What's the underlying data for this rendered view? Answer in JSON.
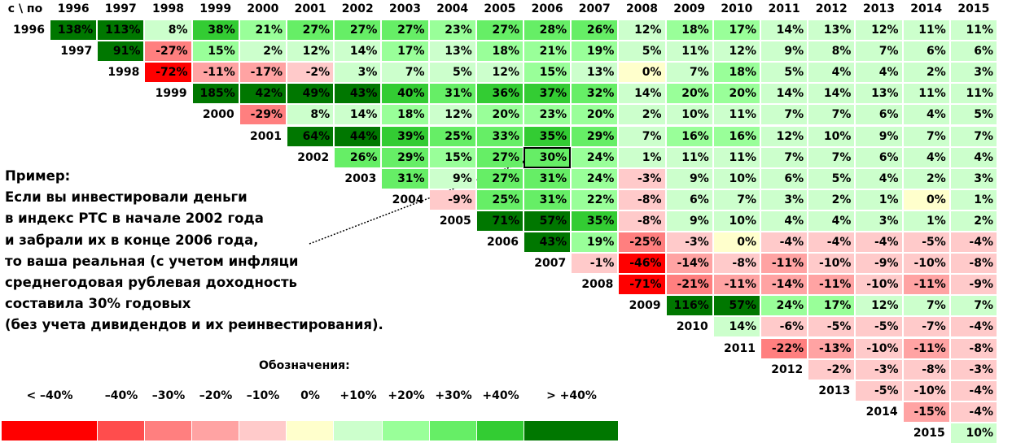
{
  "chart_data": {
    "type": "heatmap",
    "corner_label": "с \\ по",
    "columns": [
      "1996",
      "1997",
      "1998",
      "1999",
      "2000",
      "2001",
      "2002",
      "2003",
      "2004",
      "2005",
      "2006",
      "2007",
      "2008",
      "2009",
      "2010",
      "2011",
      "2012",
      "2013",
      "2014",
      "2015"
    ],
    "rows": [
      {
        "start": "1996",
        "values": [
          "138%",
          "113%",
          "8%",
          "38%",
          "21%",
          "27%",
          "27%",
          "27%",
          "23%",
          "27%",
          "28%",
          "26%",
          "12%",
          "18%",
          "17%",
          "14%",
          "13%",
          "12%",
          "11%",
          "11%"
        ]
      },
      {
        "start": "1997",
        "values": [
          "91%",
          "-27%",
          "15%",
          "2%",
          "12%",
          "14%",
          "17%",
          "13%",
          "18%",
          "21%",
          "19%",
          "5%",
          "11%",
          "12%",
          "9%",
          "8%",
          "7%",
          "6%",
          "6%"
        ]
      },
      {
        "start": "1998",
        "values": [
          "-72%",
          "-11%",
          "-17%",
          "-2%",
          "3%",
          "7%",
          "5%",
          "12%",
          "15%",
          "13%",
          "0%",
          "7%",
          "18%",
          "5%",
          "4%",
          "4%",
          "2%",
          "3%"
        ]
      },
      {
        "start": "1999",
        "values": [
          "185%",
          "42%",
          "49%",
          "43%",
          "40%",
          "31%",
          "36%",
          "37%",
          "32%",
          "14%",
          "20%",
          "20%",
          "14%",
          "14%",
          "13%",
          "11%",
          "11%"
        ]
      },
      {
        "start": "2000",
        "values": [
          "-29%",
          "8%",
          "14%",
          "18%",
          "12%",
          "20%",
          "23%",
          "20%",
          "2%",
          "10%",
          "11%",
          "7%",
          "7%",
          "6%",
          "4%",
          "5%"
        ]
      },
      {
        "start": "2001",
        "values": [
          "64%",
          "44%",
          "39%",
          "25%",
          "33%",
          "35%",
          "29%",
          "7%",
          "16%",
          "16%",
          "12%",
          "10%",
          "9%",
          "7%",
          "7%"
        ]
      },
      {
        "start": "2002",
        "values": [
          "26%",
          "29%",
          "15%",
          "27%",
          "30%",
          "24%",
          "1%",
          "11%",
          "11%",
          "7%",
          "7%",
          "6%",
          "4%",
          "4%"
        ]
      },
      {
        "start": "2003",
        "values": [
          "31%",
          "9%",
          "27%",
          "31%",
          "24%",
          "-3%",
          "9%",
          "10%",
          "6%",
          "5%",
          "4%",
          "2%",
          "3%"
        ]
      },
      {
        "start": "2004",
        "values": [
          "-9%",
          "25%",
          "31%",
          "22%",
          "-8%",
          "6%",
          "7%",
          "3%",
          "2%",
          "1%",
          "0%",
          "1%"
        ]
      },
      {
        "start": "2005",
        "values": [
          "71%",
          "57%",
          "35%",
          "-8%",
          "9%",
          "10%",
          "4%",
          "4%",
          "3%",
          "1%",
          "2%"
        ]
      },
      {
        "start": "2006",
        "values": [
          "43%",
          "19%",
          "-25%",
          "-3%",
          "0%",
          "-4%",
          "-4%",
          "-4%",
          "-5%",
          "-4%"
        ]
      },
      {
        "start": "2007",
        "values": [
          "-1%",
          "-46%",
          "-14%",
          "-8%",
          "-11%",
          "-10%",
          "-9%",
          "-10%",
          "-8%"
        ]
      },
      {
        "start": "2008",
        "values": [
          "-71%",
          "-21%",
          "-11%",
          "-14%",
          "-11%",
          "-10%",
          "-11%",
          "-9%"
        ]
      },
      {
        "start": "2009",
        "values": [
          "116%",
          "57%",
          "24%",
          "17%",
          "12%",
          "7%",
          "7%"
        ]
      },
      {
        "start": "2010",
        "values": [
          "14%",
          "-6%",
          "-5%",
          "-5%",
          "-7%",
          "-4%"
        ]
      },
      {
        "start": "2011",
        "values": [
          "-22%",
          "-13%",
          "-10%",
          "-11%",
          "-8%"
        ]
      },
      {
        "start": "2012",
        "values": [
          "-2%",
          "-3%",
          "-8%",
          "-3%"
        ]
      },
      {
        "start": "2013",
        "values": [
          "-5%",
          "-10%",
          "-4%"
        ]
      },
      {
        "start": "2014",
        "values": [
          "-15%",
          "-4%"
        ]
      },
      {
        "start": "2015",
        "values": [
          "10%"
        ]
      }
    ],
    "highlighted_cell": {
      "start": "2002",
      "end": "2006",
      "value": "30%"
    },
    "legend": {
      "title": "Обозначения:",
      "entries": [
        {
          "label": "< –40%",
          "color": "#ff0000"
        },
        {
          "label": "–40%",
          "color": "#ff4d4d"
        },
        {
          "label": "–30%",
          "color": "#ff7f7f"
        },
        {
          "label": "–20%",
          "color": "#ffa3a3"
        },
        {
          "label": "–10%",
          "color": "#ffcaca"
        },
        {
          "label": "0%",
          "color": "#ffffcc"
        },
        {
          "label": "+10%",
          "color": "#ccffcc"
        },
        {
          "label": "+20%",
          "color": "#99ff99"
        },
        {
          "label": "+30%",
          "color": "#66ee66"
        },
        {
          "label": "+40%",
          "color": "#33cc33"
        },
        {
          "label": "> +40%",
          "color": "#007700"
        }
      ]
    }
  },
  "example_note": {
    "lines": [
      "Пример:",
      "Если вы инвестировали деньги",
      "в индекс РТС в начале 2002 года",
      "и забрали их в конце 2006 года,",
      "то ваша реальная (с учетом инфляци",
      "среднегодовая рублевая доходность",
      "составила 30% годовых",
      "(без учета дивидендов и их реинвестирования)."
    ]
  }
}
